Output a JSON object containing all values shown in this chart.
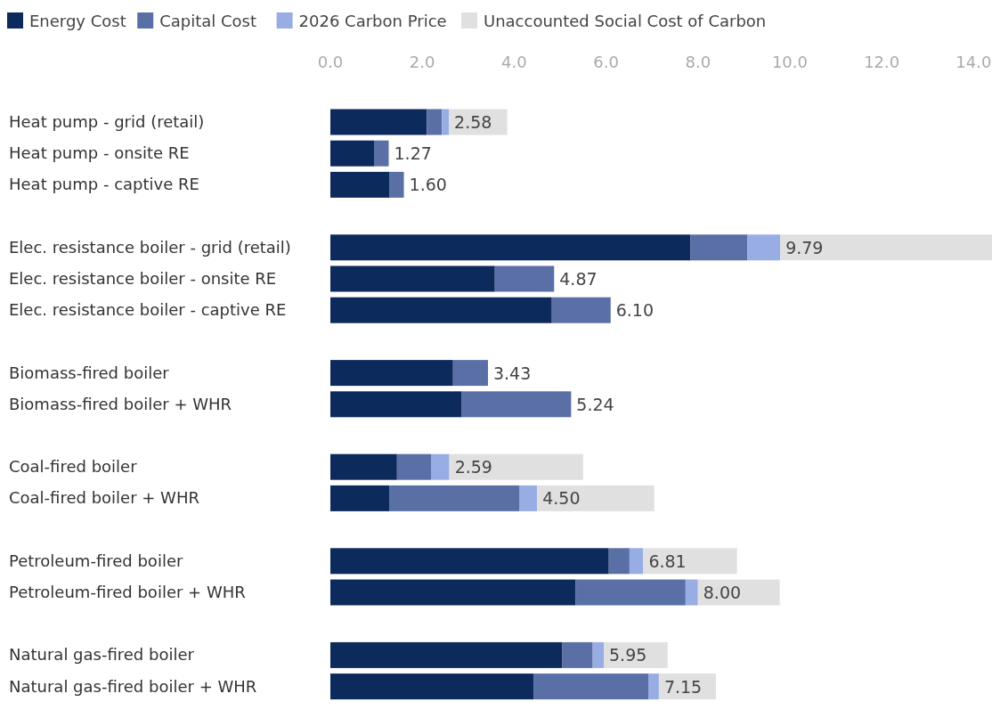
{
  "chart_data": {
    "type": "bar",
    "orientation": "horizontal",
    "stacked": true,
    "legend": "top left",
    "categories": [
      "Heat pump - grid (retail)",
      "Heat pump - onsite RE",
      "Heat pump - captive RE",
      null,
      "Elec. resistance boiler - grid (retail)",
      "Elec. resistance boiler - onsite RE",
      "Elec. resistance boiler - captive RE",
      null,
      "Biomass-fired boiler",
      "Biomass-fired boiler + WHR",
      null,
      "Coal-fired boiler",
      "Coal-fired boiler + WHR",
      null,
      "Petroleum-fired boiler",
      "Petroleum-fired boiler + WHR",
      null,
      "Natural gas-fired boiler",
      "Natural gas-fired boiler + WHR"
    ],
    "series": [
      {
        "name": "Energy Cost",
        "color": "#0d2a5c",
        "values": [
          2.1,
          0.95,
          1.28,
          null,
          7.84,
          3.58,
          4.82,
          null,
          2.67,
          2.85,
          null,
          1.45,
          1.28,
          null,
          6.06,
          5.34,
          null,
          5.05,
          4.42
        ]
      },
      {
        "name": "Capital Cost",
        "color": "#5a6fa6",
        "values": [
          0.33,
          0.32,
          0.32,
          null,
          1.24,
          1.29,
          1.28,
          null,
          0.76,
          2.39,
          null,
          0.74,
          2.84,
          null,
          0.45,
          2.39,
          null,
          0.66,
          2.51
        ]
      },
      {
        "name": "2026 Carbon Price",
        "color": "#98ade4",
        "values": [
          0.15,
          0,
          0,
          null,
          0.71,
          0,
          0,
          null,
          0,
          0,
          null,
          0.4,
          0.38,
          null,
          0.3,
          0.27,
          null,
          0.24,
          0.22
        ]
      },
      {
        "name": "Unaccounted Social Cost of Carbon",
        "color": "#e0e0e0",
        "values": [
          1.27,
          0,
          0,
          null,
          4.61,
          0,
          0,
          null,
          0,
          0,
          null,
          2.91,
          2.55,
          null,
          2.04,
          1.78,
          null,
          1.39,
          1.24
        ]
      }
    ],
    "xlim": [
      0,
      14.4
    ],
    "xticks": [
      {
        "value": 0,
        "label": "0.0"
      },
      {
        "value": 2,
        "label": "2.0"
      },
      {
        "value": 4,
        "label": "4.0"
      },
      {
        "value": 6,
        "label": "6.0"
      },
      {
        "value": 8,
        "label": "8.0"
      },
      {
        "value": 10,
        "label": "10.0"
      },
      {
        "value": 12,
        "label": "12.0"
      },
      {
        "value": 14,
        "label": "14.0"
      }
    ],
    "annotations": [
      {
        "text": "2.58",
        "x": 2.58,
        "y": "Heat pump - grid (retail)"
      },
      {
        "text": "1.27",
        "x": 1.27,
        "y": "Heat pump - onsite RE"
      },
      {
        "text": "1.60",
        "x": 1.6,
        "y": "Heat pump - captive RE"
      },
      {
        "text": "9.79",
        "x": 9.79,
        "y": "Elec. resistance boiler - grid (retail)"
      },
      {
        "text": "4.87",
        "x": 4.87,
        "y": "Elec. resistance boiler - onsite RE"
      },
      {
        "text": "6.10",
        "x": 6.1,
        "y": "Elec. resistance boiler - captive RE"
      },
      {
        "text": "3.43",
        "x": 3.43,
        "y": "Biomass-fired boiler"
      },
      {
        "text": "5.24",
        "x": 5.24,
        "y": "Biomass-fired boiler + WHR"
      },
      {
        "text": "2.59",
        "x": 2.59,
        "y": "Coal-fired boiler"
      },
      {
        "text": "4.50",
        "x": 4.5,
        "y": "Coal-fired boiler + WHR"
      },
      {
        "text": "6.81",
        "x": 6.81,
        "y": "Petroleum-fired boiler"
      },
      {
        "text": "8.00",
        "x": 8.0,
        "y": "Petroleum-fired boiler + WHR"
      },
      {
        "text": "5.95",
        "x": 5.95,
        "y": "Natural gas-fired boiler"
      },
      {
        "text": "7.15",
        "x": 7.15,
        "y": "Natural gas-fired boiler + WHR"
      }
    ]
  }
}
